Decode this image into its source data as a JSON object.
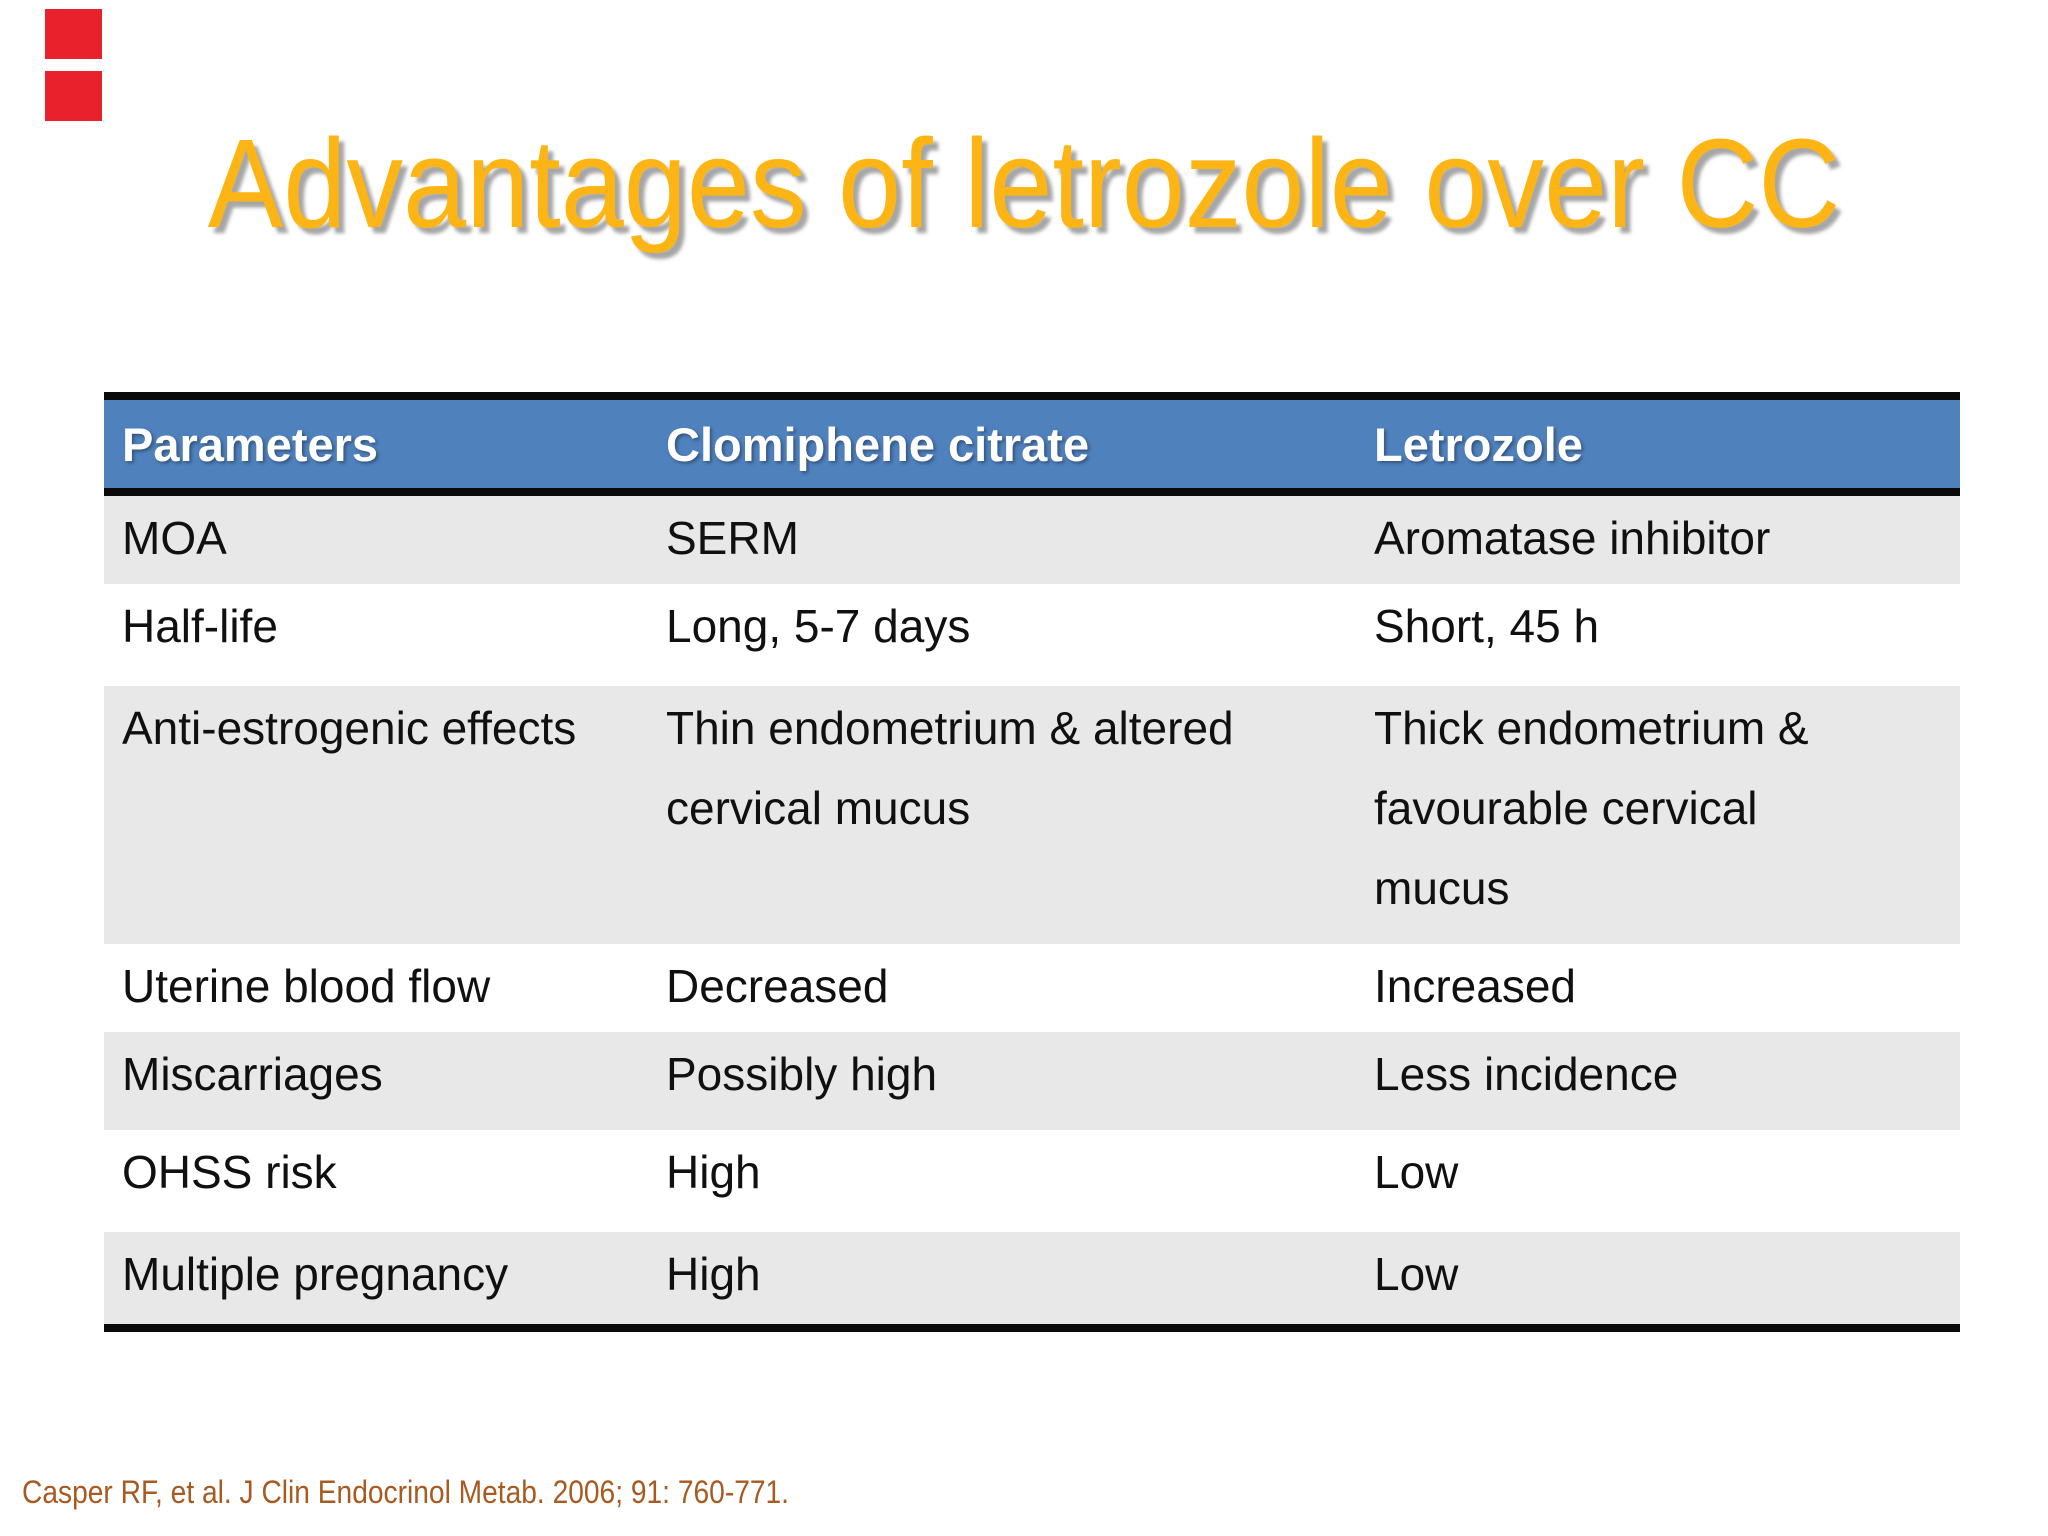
{
  "slide": {
    "title": "Advantages of letrozole over CC",
    "title_color": "#FCB515",
    "background_color": "#FFFFFF",
    "citation": "Casper RF, et al. J Clin Endocrinol Metab. 2006; 91: 760-771.",
    "citation_color": "#A85A21"
  },
  "decor": {
    "red_accent_bar_color": "#E8212D"
  },
  "table": {
    "header_bg": "#4F81BD",
    "header_text_color": "#FFFFFF",
    "shaded_row_bg": "#E8E8E8",
    "plain_row_bg": "#FFFFFF",
    "border_color": "#0A0A0A",
    "columns": [
      "Parameters",
      "Clomiphene citrate",
      "Letrozole"
    ],
    "rows": [
      {
        "parameter": "MOA",
        "clomiphene": "SERM",
        "letrozole": "Aromatase inhibitor"
      },
      {
        "parameter": "Half-life",
        "clomiphene": "Long, 5-7 days",
        "letrozole": "Short, 45 h"
      },
      {
        "parameter": "Anti-estrogenic effects",
        "clomiphene": "Thin endometrium & altered cervical mucus",
        "letrozole": "Thick endometrium & favourable cervical mucus"
      },
      {
        "parameter": "Uterine blood flow",
        "clomiphene": "Decreased",
        "letrozole": "Increased"
      },
      {
        "parameter": "Miscarriages",
        "clomiphene": "Possibly high",
        "letrozole": "Less incidence"
      },
      {
        "parameter": "OHSS risk",
        "clomiphene": "High",
        "letrozole": "Low"
      },
      {
        "parameter": "Multiple pregnancy",
        "clomiphene": "High",
        "letrozole": "Low"
      }
    ]
  },
  "chart_data": {
    "type": "table",
    "title": "Advantages of letrozole over CC",
    "columns": [
      "Parameters",
      "Clomiphene citrate",
      "Letrozole"
    ],
    "rows": [
      [
        "MOA",
        "SERM",
        "Aromatase inhibitor"
      ],
      [
        "Half-life",
        "Long, 5-7 days",
        "Short, 45 h"
      ],
      [
        "Anti-estrogenic effects",
        "Thin endometrium & altered cervical mucus",
        "Thick endometrium & favourable cervical mucus"
      ],
      [
        "Uterine blood flow",
        "Decreased",
        "Increased"
      ],
      [
        "Miscarriages",
        "Possibly high",
        "Less incidence"
      ],
      [
        "OHSS risk",
        "High",
        "Low"
      ],
      [
        "Multiple pregnancy",
        "High",
        "Low"
      ]
    ]
  }
}
